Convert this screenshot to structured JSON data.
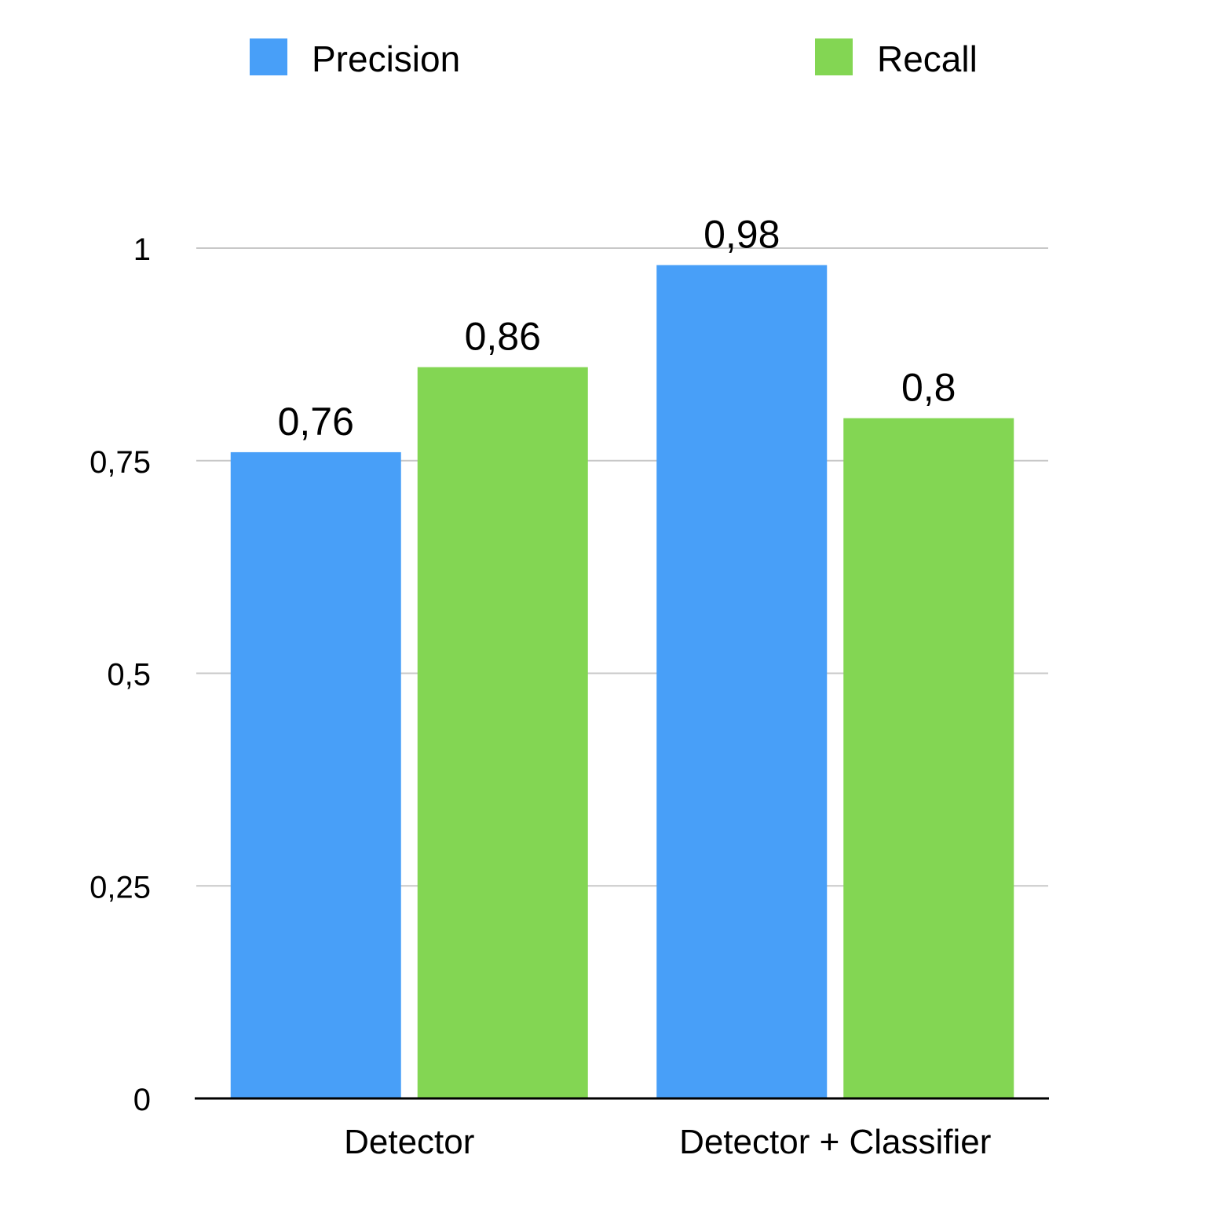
{
  "chart_data": {
    "type": "bar",
    "title": "",
    "xlabel": "",
    "ylabel": "",
    "categories": [
      "Detector",
      "Detector + Classifier"
    ],
    "series": [
      {
        "name": "Precision",
        "values": [
          0.76,
          0.98
        ],
        "labels": [
          "0,76",
          "0,98"
        ],
        "color": "#489FF8"
      },
      {
        "name": "Recall",
        "values": [
          0.86,
          0.8
        ],
        "labels": [
          "0,86",
          "0,8"
        ],
        "color": "#83D653"
      }
    ],
    "ylim": [
      0,
      1
    ],
    "yticks": [
      0,
      0.25,
      0.5,
      0.75,
      1
    ],
    "ytick_labels": [
      "0",
      "0,25",
      "0,5",
      "0,75",
      "1"
    ],
    "grid": true,
    "legend_position": "top"
  }
}
